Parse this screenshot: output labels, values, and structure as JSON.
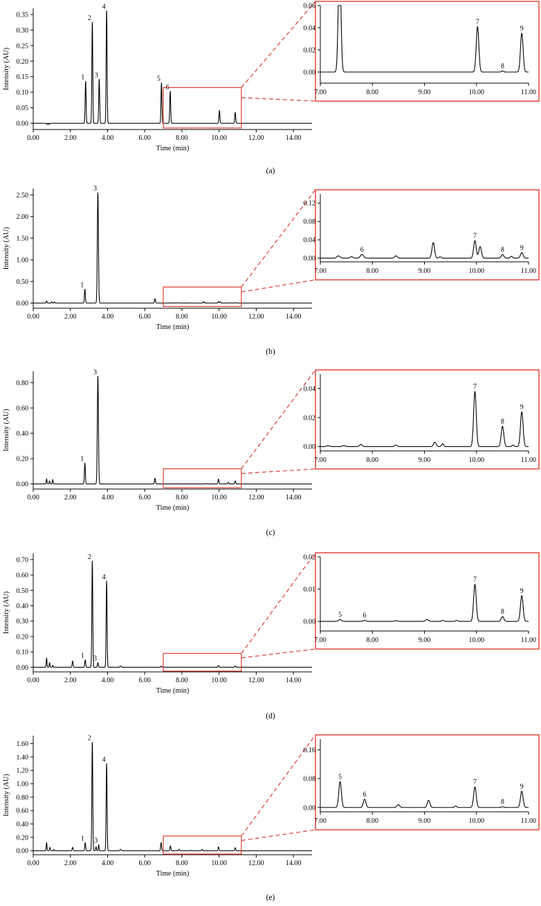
{
  "chart_data": [
    {
      "type": "line",
      "panel_label": "(a)",
      "xlabel": "Time (min)",
      "ylabel": "Intensity (AU)",
      "xlim": [
        0,
        15
      ],
      "ylim": [
        -0.02,
        0.37
      ],
      "xticks": [
        0,
        2,
        4,
        6,
        8,
        10,
        12,
        14
      ],
      "yticks": [
        0,
        0.05,
        0.1,
        0.15,
        0.2,
        0.25,
        0.3,
        0.35
      ],
      "ytick_decimals": 2,
      "peaks": [
        {
          "t": 0.75,
          "h": -0.004,
          "w": 0.015
        },
        {
          "t": 0.85,
          "h": -0.004,
          "w": 0.015
        },
        {
          "t": 2.82,
          "h": 0.135,
          "w": 0.025
        },
        {
          "t": 3.18,
          "h": 0.325,
          "w": 0.025
        },
        {
          "t": 3.55,
          "h": 0.142,
          "w": 0.025
        },
        {
          "t": 3.95,
          "h": 0.362,
          "w": 0.025
        },
        {
          "t": 6.9,
          "h": 0.13,
          "w": 0.025
        },
        {
          "t": 7.37,
          "h": 0.103,
          "w": 0.025
        },
        {
          "t": 10.02,
          "h": 0.041,
          "w": 0.025
        },
        {
          "t": 10.5,
          "h": 0.001,
          "w": 0.02
        },
        {
          "t": 10.87,
          "h": 0.035,
          "w": 0.025
        }
      ],
      "labels": [
        {
          "text": "1",
          "t": 2.82,
          "y": 0.135
        },
        {
          "text": "2",
          "t": 3.18,
          "y": 0.325
        },
        {
          "text": "3",
          "t": 3.55,
          "y": 0.142
        },
        {
          "text": "4",
          "t": 3.95,
          "y": 0.362
        },
        {
          "text": "5",
          "t": 6.9,
          "y": 0.13
        },
        {
          "text": "6",
          "t": 7.37,
          "y": 0.103
        }
      ],
      "zoom": {
        "box": {
          "x1": 7.0,
          "x2": 11.2,
          "y1": -0.015,
          "y2": 0.115
        },
        "xlim": [
          7.0,
          11.0
        ],
        "ylim": [
          -0.01,
          0.06
        ],
        "xticks": [
          7,
          8,
          9,
          10,
          11
        ],
        "yticks": [
          0,
          0.02,
          0.04,
          0.06
        ],
        "ytick_decimals": 2,
        "labels": [
          {
            "text": "7",
            "t": 10.02,
            "y": 0.041
          },
          {
            "text": "8",
            "t": 10.5,
            "y": 0.001
          },
          {
            "text": "9",
            "t": 10.87,
            "y": 0.035
          }
        ]
      }
    },
    {
      "type": "line",
      "panel_label": "(b)",
      "xlabel": "Time (min)",
      "ylabel": "Intensity (AU)",
      "xlim": [
        0,
        15
      ],
      "ylim": [
        -0.12,
        2.65
      ],
      "xticks": [
        0,
        2,
        4,
        6,
        8,
        10,
        12,
        14
      ],
      "yticks": [
        0,
        0.5,
        1.0,
        1.5,
        2.0,
        2.5
      ],
      "ytick_decimals": 2,
      "peaks": [
        {
          "t": 0.72,
          "h": 0.05,
          "w": 0.02
        },
        {
          "t": 1.0,
          "h": 0.03,
          "w": 0.02
        },
        {
          "t": 1.15,
          "h": 0.025,
          "w": 0.02
        },
        {
          "t": 2.78,
          "h": 0.32,
          "w": 0.025
        },
        {
          "t": 3.48,
          "h": 2.55,
          "w": 0.03
        },
        {
          "t": 6.55,
          "h": 0.1,
          "w": 0.025
        },
        {
          "t": 7.35,
          "h": 0.005,
          "w": 0.03
        },
        {
          "t": 7.6,
          "h": 0.003,
          "w": 0.03
        },
        {
          "t": 7.8,
          "h": 0.008,
          "w": 0.03
        },
        {
          "t": 8.45,
          "h": 0.005,
          "w": 0.025
        },
        {
          "t": 9.17,
          "h": 0.034,
          "w": 0.025
        },
        {
          "t": 9.3,
          "h": 0.003,
          "w": 0.02
        },
        {
          "t": 9.97,
          "h": 0.038,
          "w": 0.025
        },
        {
          "t": 10.07,
          "h": 0.025,
          "w": 0.025
        },
        {
          "t": 10.5,
          "h": 0.008,
          "w": 0.025
        },
        {
          "t": 10.67,
          "h": 0.004,
          "w": 0.02
        },
        {
          "t": 10.87,
          "h": 0.012,
          "w": 0.025
        }
      ],
      "labels": [
        {
          "text": "1",
          "t": 2.78,
          "y": 0.32
        },
        {
          "text": "3",
          "t": 3.48,
          "y": 2.55
        }
      ],
      "zoom": {
        "box": {
          "x1": 7.0,
          "x2": 11.2,
          "y1": -0.08,
          "y2": 0.37
        },
        "xlim": [
          7.0,
          11.0
        ],
        "ylim": [
          -0.008,
          0.14
        ],
        "xticks": [
          7,
          8,
          9,
          10,
          11
        ],
        "yticks": [
          0,
          0.04,
          0.08,
          0.12
        ],
        "ytick_decimals": 2,
        "labels": [
          {
            "text": "6",
            "t": 7.8,
            "y": 0.008
          },
          {
            "text": "7",
            "t": 9.97,
            "y": 0.038
          },
          {
            "text": "8",
            "t": 10.5,
            "y": 0.008
          },
          {
            "text": "9",
            "t": 10.87,
            "y": 0.012
          }
        ]
      }
    },
    {
      "type": "line",
      "panel_label": "(c)",
      "xlabel": "Time (min)",
      "ylabel": "Intensity (AU)",
      "xlim": [
        0,
        15
      ],
      "ylim": [
        -0.04,
        0.89
      ],
      "xticks": [
        0,
        2,
        4,
        6,
        8,
        10,
        12,
        14
      ],
      "yticks": [
        0,
        0.2,
        0.4,
        0.6,
        0.8
      ],
      "ytick_decimals": 2,
      "peaks": [
        {
          "t": 0.72,
          "h": 0.04,
          "w": 0.02
        },
        {
          "t": 0.88,
          "h": 0.025,
          "w": 0.02
        },
        {
          "t": 1.05,
          "h": 0.035,
          "w": 0.02
        },
        {
          "t": 2.78,
          "h": 0.165,
          "w": 0.025
        },
        {
          "t": 3.48,
          "h": 0.85,
          "w": 0.03
        },
        {
          "t": 6.55,
          "h": 0.045,
          "w": 0.025
        },
        {
          "t": 7.15,
          "h": 0.0006,
          "w": 0.03
        },
        {
          "t": 7.45,
          "h": 0.0006,
          "w": 0.03
        },
        {
          "t": 7.78,
          "h": 0.0015,
          "w": 0.025
        },
        {
          "t": 8.45,
          "h": 0.001,
          "w": 0.025
        },
        {
          "t": 9.2,
          "h": 0.003,
          "w": 0.025
        },
        {
          "t": 9.35,
          "h": 0.002,
          "w": 0.02
        },
        {
          "t": 9.97,
          "h": 0.038,
          "w": 0.025
        },
        {
          "t": 10.5,
          "h": 0.014,
          "w": 0.025
        },
        {
          "t": 10.7,
          "h": 0.001,
          "w": 0.02
        },
        {
          "t": 10.87,
          "h": 0.024,
          "w": 0.025
        }
      ],
      "labels": [
        {
          "text": "1",
          "t": 2.78,
          "y": 0.165
        },
        {
          "text": "3",
          "t": 3.48,
          "y": 0.85
        }
      ],
      "zoom": {
        "box": {
          "x1": 7.0,
          "x2": 11.2,
          "y1": -0.03,
          "y2": 0.12
        },
        "xlim": [
          7.0,
          11.0
        ],
        "ylim": [
          -0.003,
          0.05
        ],
        "xticks": [
          7,
          8,
          9,
          10,
          11
        ],
        "yticks": [
          0,
          0.02,
          0.04
        ],
        "ytick_decimals": 2,
        "labels": [
          {
            "text": "7",
            "t": 9.97,
            "y": 0.038
          },
          {
            "text": "8",
            "t": 10.5,
            "y": 0.014
          },
          {
            "text": "9",
            "t": 10.87,
            "y": 0.024
          }
        ]
      }
    },
    {
      "type": "line",
      "panel_label": "(d)",
      "xlabel": "Time (min)",
      "ylabel": "Intensity (AU)",
      "xlim": [
        0,
        15
      ],
      "ylim": [
        -0.03,
        0.74
      ],
      "xticks": [
        0,
        2,
        4,
        6,
        8,
        10,
        12,
        14
      ],
      "yticks": [
        0,
        0.1,
        0.2,
        0.3,
        0.4,
        0.5,
        0.6,
        0.7
      ],
      "ytick_decimals": 2,
      "peaks": [
        {
          "t": 0.72,
          "h": 0.06,
          "w": 0.02
        },
        {
          "t": 0.88,
          "h": 0.03,
          "w": 0.02
        },
        {
          "t": 1.05,
          "h": 0.012,
          "w": 0.02
        },
        {
          "t": 2.12,
          "h": 0.04,
          "w": 0.025
        },
        {
          "t": 2.8,
          "h": 0.048,
          "w": 0.025
        },
        {
          "t": 3.18,
          "h": 0.69,
          "w": 0.025
        },
        {
          "t": 3.48,
          "h": 0.03,
          "w": 0.025
        },
        {
          "t": 3.95,
          "h": 0.56,
          "w": 0.025
        },
        {
          "t": 4.7,
          "h": 0.008,
          "w": 0.03
        },
        {
          "t": 6.9,
          "h": 0.008,
          "w": 0.025
        },
        {
          "t": 7.38,
          "h": 0.0006,
          "w": 0.025
        },
        {
          "t": 7.85,
          "h": 0.0003,
          "w": 0.025
        },
        {
          "t": 8.45,
          "h": 0.0002,
          "w": 0.025
        },
        {
          "t": 9.05,
          "h": 0.0006,
          "w": 0.025
        },
        {
          "t": 9.35,
          "h": 0.0003,
          "w": 0.02
        },
        {
          "t": 9.62,
          "h": 0.0003,
          "w": 0.02
        },
        {
          "t": 9.97,
          "h": 0.0115,
          "w": 0.025
        },
        {
          "t": 10.5,
          "h": 0.0015,
          "w": 0.025
        },
        {
          "t": 10.87,
          "h": 0.008,
          "w": 0.025
        }
      ],
      "labels": [
        {
          "text": "1",
          "t": 2.8,
          "y": 0.048
        },
        {
          "text": "2",
          "t": 3.18,
          "y": 0.69
        },
        {
          "text": "3",
          "t": 3.48,
          "y": 0.03
        },
        {
          "text": "4",
          "t": 3.95,
          "y": 0.56
        }
      ],
      "zoom": {
        "box": {
          "x1": 7.0,
          "x2": 11.2,
          "y1": -0.025,
          "y2": 0.09
        },
        "xlim": [
          7.0,
          11.0
        ],
        "ylim": [
          -0.003,
          0.02
        ],
        "xticks": [
          7,
          8,
          9,
          10,
          11
        ],
        "yticks": [
          0,
          0.01,
          0.02
        ],
        "ytick_decimals": 2,
        "labels": [
          {
            "text": "5",
            "t": 7.38,
            "y": 0.0006
          },
          {
            "text": "6",
            "t": 7.85,
            "y": 0.0003
          },
          {
            "text": "7",
            "t": 9.97,
            "y": 0.0115
          },
          {
            "text": "8",
            "t": 10.5,
            "y": 0.0015
          },
          {
            "text": "9",
            "t": 10.87,
            "y": 0.008
          }
        ]
      }
    },
    {
      "type": "line",
      "panel_label": "(e)",
      "xlabel": "Time (min)",
      "ylabel": "Intensity (AU)",
      "xlim": [
        0,
        15
      ],
      "ylim": [
        -0.06,
        1.72
      ],
      "xticks": [
        0,
        2,
        4,
        6,
        8,
        10,
        12,
        14
      ],
      "yticks": [
        0,
        0.2,
        0.4,
        0.6,
        0.8,
        1.0,
        1.2,
        1.4,
        1.6
      ],
      "ytick_decimals": 2,
      "peaks": [
        {
          "t": 0.72,
          "h": 0.12,
          "w": 0.02
        },
        {
          "t": 0.9,
          "h": 0.05,
          "w": 0.02
        },
        {
          "t": 1.1,
          "h": 0.02,
          "w": 0.02
        },
        {
          "t": 2.12,
          "h": 0.05,
          "w": 0.025
        },
        {
          "t": 2.8,
          "h": 0.12,
          "w": 0.025
        },
        {
          "t": 3.18,
          "h": 1.62,
          "w": 0.025
        },
        {
          "t": 3.38,
          "h": 0.06,
          "w": 0.02
        },
        {
          "t": 3.52,
          "h": 0.09,
          "w": 0.02
        },
        {
          "t": 3.95,
          "h": 1.3,
          "w": 0.025
        },
        {
          "t": 4.7,
          "h": 0.02,
          "w": 0.03
        },
        {
          "t": 6.88,
          "h": 0.12,
          "w": 0.025
        },
        {
          "t": 7.38,
          "h": 0.072,
          "w": 0.025
        },
        {
          "t": 7.85,
          "h": 0.023,
          "w": 0.025
        },
        {
          "t": 8.5,
          "h": 0.008,
          "w": 0.025
        },
        {
          "t": 9.08,
          "h": 0.02,
          "w": 0.025
        },
        {
          "t": 9.6,
          "h": 0.004,
          "w": 0.02
        },
        {
          "t": 9.97,
          "h": 0.057,
          "w": 0.025
        },
        {
          "t": 10.5,
          "h": 0.002,
          "w": 0.025
        },
        {
          "t": 10.87,
          "h": 0.045,
          "w": 0.025
        }
      ],
      "labels": [
        {
          "text": "1",
          "t": 2.8,
          "y": 0.12
        },
        {
          "text": "2",
          "t": 3.18,
          "y": 1.62
        },
        {
          "text": "3",
          "t": 3.52,
          "y": 0.09
        },
        {
          "text": "4",
          "t": 3.95,
          "y": 1.3
        }
      ],
      "zoom": {
        "box": {
          "x1": 7.0,
          "x2": 11.2,
          "y1": -0.05,
          "y2": 0.22
        },
        "xlim": [
          7.0,
          11.0
        ],
        "ylim": [
          -0.012,
          0.19
        ],
        "xticks": [
          7,
          8,
          9,
          10,
          11
        ],
        "yticks": [
          0,
          0.08,
          0.16
        ],
        "ytick_decimals": 2,
        "labels": [
          {
            "text": "5",
            "t": 7.38,
            "y": 0.072
          },
          {
            "text": "6",
            "t": 7.85,
            "y": 0.023
          },
          {
            "text": "7",
            "t": 9.97,
            "y": 0.057
          },
          {
            "text": "8",
            "t": 10.5,
            "y": 0.002
          },
          {
            "text": "9",
            "t": 10.87,
            "y": 0.045
          }
        ]
      }
    }
  ],
  "colors": {
    "trace": "#000000",
    "zoom_box": "#e03c31",
    "connector": "#e03c31"
  }
}
